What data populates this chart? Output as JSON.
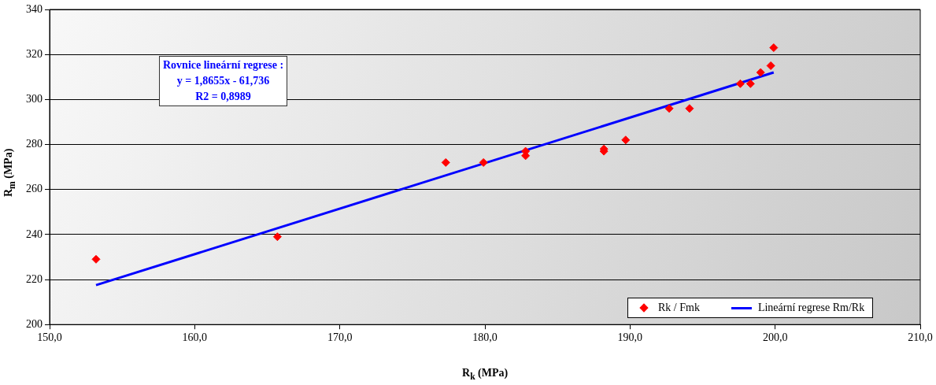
{
  "chart_data": {
    "type": "scatter",
    "xlabel": "R$_{k}$ (MPa)",
    "ylabel": "R$_{m}$ (MPa)",
    "series": [
      {
        "name": "Rk / Fmk",
        "type": "scatter",
        "color": "#ff0000",
        "marker": "diamond",
        "x": [
          153.2,
          165.7,
          177.3,
          179.9,
          182.8,
          182.8,
          188.2,
          188.2,
          189.7,
          192.7,
          194.1,
          197.6,
          198.3,
          199.0,
          199.7,
          199.9
        ],
        "values": [
          229,
          239,
          272,
          272,
          275,
          277,
          278,
          277,
          282,
          296,
          296,
          307,
          307,
          312,
          315,
          323
        ]
      },
      {
        "name": "Lineární regrese Rm/Rk",
        "type": "line",
        "color": "#0000ff",
        "marker": "none",
        "line_style": "solid",
        "x": [
          153.2,
          199.9
        ],
        "values": [
          217.5,
          312
        ]
      }
    ],
    "xlim": [
      150,
      210
    ],
    "xticks": [
      {
        "value": 150,
        "label": "150,0"
      },
      {
        "value": 160,
        "label": "160,0"
      },
      {
        "value": 170,
        "label": "170,0"
      },
      {
        "value": 180,
        "label": "180,0"
      },
      {
        "value": 190,
        "label": "190,0"
      },
      {
        "value": 200,
        "label": "200,0"
      },
      {
        "value": 210,
        "label": "210,0"
      }
    ],
    "ylim": [
      200,
      340
    ],
    "yticks": [
      200,
      220,
      240,
      260,
      280,
      300,
      320,
      340
    ],
    "grid": "y",
    "legend": "bottom right",
    "annotations": [
      "Rovnice lineární  regrese :\ny = 1,8655x - 61,736\nR2 = 0,8989"
    ]
  }
}
